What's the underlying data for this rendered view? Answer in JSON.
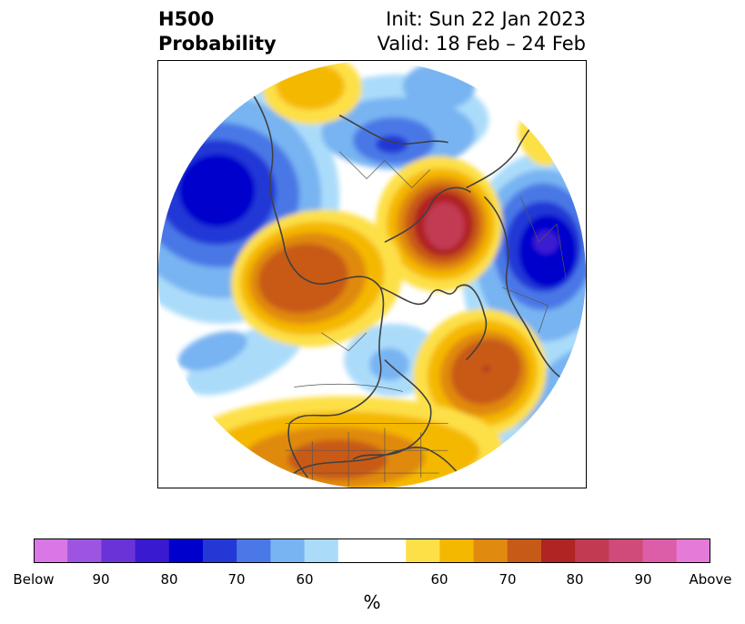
{
  "title": {
    "left_line1": "H500",
    "left_line2": "Probability",
    "right_line1": "Init: Sun 22 Jan 2023",
    "right_line2": "Valid: 18 Feb – 24 Feb"
  },
  "colors": {
    "below": [
      "#d977e6",
      "#9d54e0",
      "#6a33d8",
      "#3a1ad0",
      "#0000cc",
      "#2438d6",
      "#4a78e6",
      "#78b4f2",
      "#aadcfa"
    ],
    "neutral": "#ffffff",
    "above": [
      "#fde047",
      "#f5b800",
      "#e08a10",
      "#c85a18",
      "#b02424",
      "#c23a52",
      "#d04a7a",
      "#dc5ea8",
      "#e67ad8"
    ]
  },
  "colorbar": {
    "tick_labels": [
      "Below",
      "90",
      "80",
      "70",
      "60",
      "60",
      "70",
      "80",
      "90",
      "Above"
    ],
    "unit": "%"
  }
}
